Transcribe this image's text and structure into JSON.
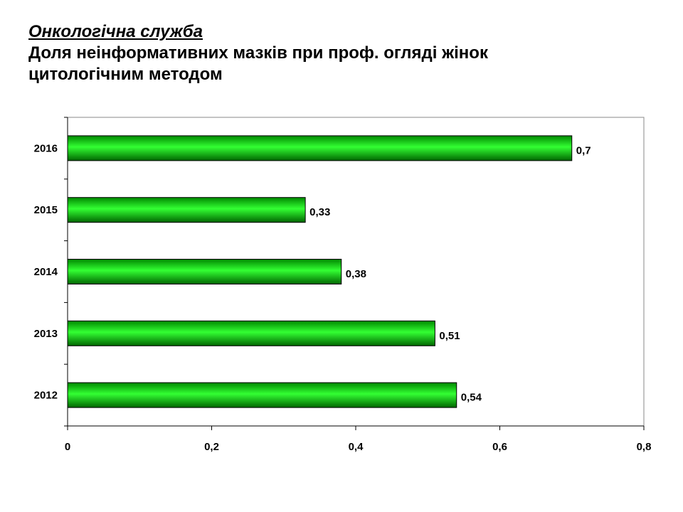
{
  "slide": {
    "title_line1": "Онкологічна служба",
    "title_line2": "Доля неінформативних мазків при проф. огляді жінок",
    "title_line3": "цитологічним методом"
  },
  "chart_data": {
    "type": "bar",
    "orientation": "horizontal",
    "categories": [
      "2016",
      "2015",
      "2014",
      "2013",
      "2012"
    ],
    "values": [
      0.7,
      0.33,
      0.38,
      0.51,
      0.54
    ],
    "value_labels": [
      "0,7",
      "0,33",
      "0,38",
      "0,51",
      "0,54"
    ],
    "x_ticks": [
      "0",
      "0,2",
      "0,4",
      "0,6",
      "0,8"
    ],
    "xlim": [
      0,
      0.8
    ],
    "grid": false,
    "legend": "none",
    "colors": {
      "bar_light": "#66ff66",
      "bar_main": "#00e600",
      "bar_dark": "#008800",
      "axis": "#000000"
    }
  }
}
